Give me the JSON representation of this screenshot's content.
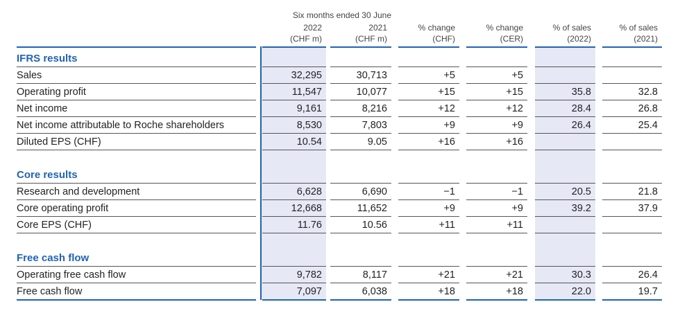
{
  "header": {
    "period": "Six months ended 30 June",
    "columns": [
      {
        "line1": "2022",
        "line2": "(CHF m)"
      },
      {
        "line1": "2021",
        "line2": "(CHF m)"
      },
      {
        "line1": "% change",
        "line2": "(CHF)"
      },
      {
        "line1": "% change",
        "line2": "(CER)"
      },
      {
        "line1": "% of sales",
        "line2": "(2022)"
      },
      {
        "line1": "% of sales",
        "line2": "(2021)"
      }
    ]
  },
  "sections": [
    {
      "title": "IFRS results",
      "rows": [
        {
          "label": "Sales",
          "values": [
            "32,295",
            "30,713",
            "+5",
            "+5",
            "",
            ""
          ]
        },
        {
          "label": "Operating profit",
          "values": [
            "11,547",
            "10,077",
            "+15",
            "+15",
            "35.8",
            "32.8"
          ]
        },
        {
          "label": "Net income",
          "values": [
            "9,161",
            "8,216",
            "+12",
            "+12",
            "28.4",
            "26.8"
          ]
        },
        {
          "label": "Net income attributable to Roche shareholders",
          "values": [
            "8,530",
            "7,803",
            "+9",
            "+9",
            "26.4",
            "25.4"
          ]
        },
        {
          "label": "Diluted EPS (CHF)",
          "values": [
            "10.54",
            "9.05",
            "+16",
            "+16",
            "",
            ""
          ]
        }
      ]
    },
    {
      "title": "Core results",
      "rows": [
        {
          "label": "Research and development",
          "values": [
            "6,628",
            "6,690",
            "−1",
            "−1",
            "20.5",
            "21.8"
          ]
        },
        {
          "label": "Core operating profit",
          "values": [
            "12,668",
            "11,652",
            "+9",
            "+9",
            "39.2",
            "37.9"
          ]
        },
        {
          "label": "Core EPS (CHF)",
          "values": [
            "11.76",
            "10.56",
            "+11",
            "+11",
            "",
            ""
          ]
        }
      ]
    },
    {
      "title": "Free cash flow",
      "rows": [
        {
          "label": "Operating free cash flow",
          "values": [
            "9,782",
            "8,117",
            "+21",
            "+21",
            "30.3",
            "26.4"
          ]
        },
        {
          "label": "Free cash flow",
          "values": [
            "7,097",
            "6,038",
            "+18",
            "+18",
            "22.0",
            "19.7"
          ]
        }
      ]
    }
  ],
  "colors": {
    "accent": "#1f63b3",
    "highlight": "#e6e8f5"
  }
}
